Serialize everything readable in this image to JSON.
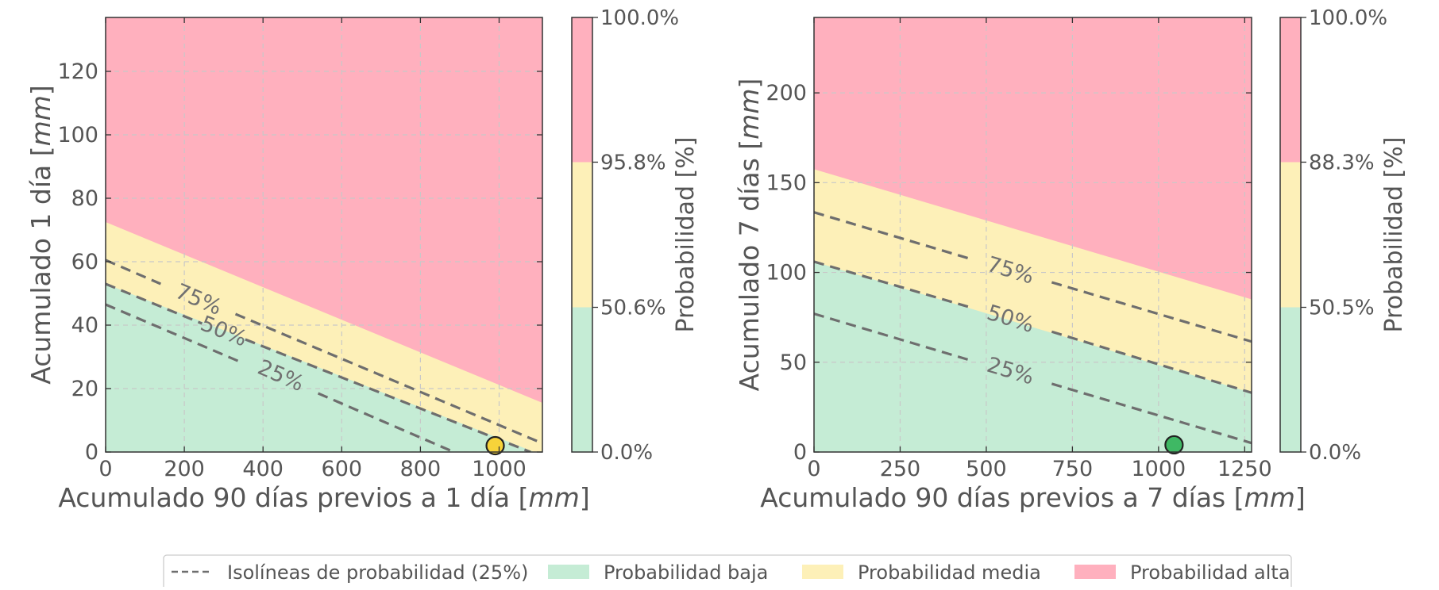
{
  "chart_data": [
    {
      "type": "area",
      "xlabel_main": "Acumulado 90 días previos a 1 día [",
      "xlabel_unit": "mm",
      "xlabel_end": "]",
      "ylabel_main": "Acumulado 1 día [",
      "ylabel_unit": "mm",
      "ylabel_end": "]",
      "xlim": [
        0,
        1110
      ],
      "ylim": [
        0,
        137
      ],
      "xticks": [
        0,
        200,
        400,
        600,
        800,
        1000
      ],
      "yticks": [
        0,
        20,
        40,
        60,
        80,
        100,
        120
      ],
      "boundary_medium": [
        [
          0,
          72.5
        ],
        [
          1110,
          15.5
        ]
      ],
      "boundary_high": [
        [
          0,
          53
        ],
        [
          1110,
          -1
        ]
      ],
      "isolines": [
        {
          "label": "75%",
          "x": [
            0,
            140,
            330,
            1105
          ],
          "y": [
            60.5,
            53,
            43.5,
            3
          ],
          "label_at": [
            236,
            48
          ]
        },
        {
          "label": "50%",
          "x": [
            0,
            245,
            355,
            1080
          ],
          "y": [
            53,
            40.5,
            35.5,
            0
          ],
          "label_at": [
            300,
            38
          ]
        },
        {
          "label": "25%",
          "x": [
            0,
            350,
            540,
            885
          ],
          "y": [
            46.5,
            28,
            18.5,
            0
          ],
          "label_at": [
            445,
            24
          ]
        }
      ],
      "point": {
        "x": 990,
        "y": 2,
        "color": "#f7d33a"
      },
      "colorbar": {
        "ticks": [
          "0.0%",
          "50.6%",
          "95.8%",
          "100.0%"
        ],
        "fractions": [
          0,
          0.333,
          0.667,
          1
        ],
        "label": "Probabilidad [%]"
      }
    },
    {
      "type": "area",
      "xlabel_main": "Acumulado 90 días previos a 7 días [",
      "xlabel_unit": "mm",
      "xlabel_end": "]",
      "ylabel_main": "Acumulado 7 días [",
      "ylabel_unit": "mm",
      "ylabel_end": "]",
      "xlim": [
        0,
        1270
      ],
      "ylim": [
        0,
        242
      ],
      "xticks": [
        0,
        250,
        500,
        750,
        1000,
        1250
      ],
      "yticks": [
        0,
        50,
        100,
        150,
        200
      ],
      "boundary_medium": [
        [
          0,
          157.5
        ],
        [
          1270,
          85
        ]
      ],
      "boundary_high": [
        [
          0,
          106
        ],
        [
          1270,
          33
        ]
      ],
      "isolines": [
        {
          "label": "75%",
          "x": [
            0,
            455,
            690,
            1270
          ],
          "y": [
            133.5,
            107.5,
            94.5,
            61.5
          ],
          "label_at": [
            570,
            101
          ]
        },
        {
          "label": "50%",
          "x": [
            0,
            455,
            690,
            1270
          ],
          "y": [
            106,
            80.5,
            67,
            33
          ],
          "label_at": [
            570,
            74
          ]
        },
        {
          "label": "25%",
          "x": [
            0,
            455,
            690,
            1270
          ],
          "y": [
            77,
            51,
            38,
            5
          ],
          "label_at": [
            570,
            45
          ]
        }
      ],
      "point": {
        "x": 1045,
        "y": 4,
        "color": "#3fb864"
      },
      "colorbar": {
        "ticks": [
          "0.0%",
          "50.5%",
          "88.3%",
          "100.0%"
        ],
        "fractions": [
          0,
          0.333,
          0.667,
          1
        ],
        "label": "Probabilidad [%]"
      }
    }
  ],
  "colors": {
    "low": "#c5ecd5",
    "medium": "#fdf0b8",
    "high": "#ffb0be",
    "isoline": "#6e6e6e",
    "grid": "#c8c8c8",
    "axis": "#333333"
  },
  "legend": {
    "items": [
      {
        "kind": "dashed",
        "label": "Isolíneas de probabilidad (25%)"
      },
      {
        "kind": "low",
        "label": "Probabilidad baja"
      },
      {
        "kind": "medium",
        "label": "Probabilidad media"
      },
      {
        "kind": "high",
        "label": "Probabilidad alta"
      }
    ]
  }
}
